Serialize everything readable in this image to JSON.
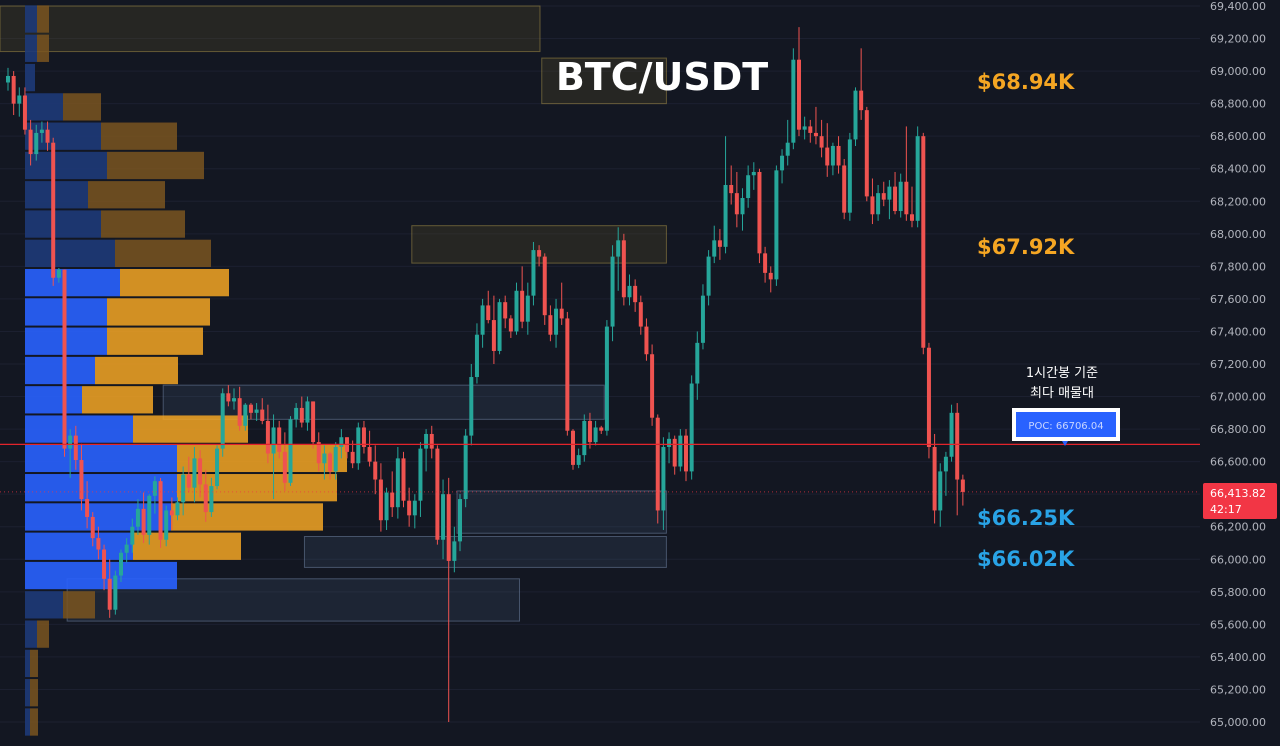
{
  "chart_data": {
    "type": "candlestick",
    "title": "BTC/USDT",
    "ylim": [
      65000,
      69400
    ],
    "yticks": [
      69400,
      69200,
      69000,
      68800,
      68600,
      68400,
      68200,
      68000,
      67800,
      67600,
      67400,
      67200,
      67000,
      66800,
      66600,
      66400,
      66200,
      66000,
      65800,
      65600,
      65400,
      65200,
      65000
    ],
    "ytick_labels": [
      "69,400.00",
      "69,200.00",
      "69,000.00",
      "68,800.00",
      "68,600.00",
      "68,400.00",
      "68,200.00",
      "68,000.00",
      "67,800.00",
      "67,600.00",
      "67,400.00",
      "67,200.00",
      "67,000.00",
      "66,800.00",
      "66,600.00",
      "66,400.00",
      "66,200.00",
      "66,000.00",
      "65,800.00",
      "65,600.00",
      "65,400.00",
      "65,200.00",
      "65,000.00"
    ],
    "grid": true,
    "current_price": {
      "value": 66413.82,
      "label": "66,413.82",
      "countdown": "42:17",
      "color": "#f23645"
    },
    "poc": {
      "value": 66706.04,
      "label": "POC: 66706.04",
      "note_line1": "1시간봉 기준",
      "note_line2": "최다 매물대"
    },
    "level_labels": [
      {
        "text": "$68.94K",
        "price": 68940,
        "color": "#f5a623"
      },
      {
        "text": "$67.92K",
        "price": 67920,
        "color": "#f5a623"
      },
      {
        "text": "$66.25K",
        "price": 66250,
        "color": "#29a3e6"
      },
      {
        "text": "$66.02K",
        "price": 66020,
        "color": "#29a3e6"
      }
    ],
    "zones": [
      {
        "from_candle": 0,
        "to_candle": 999,
        "price_top": 69400,
        "price_bottom": 69120,
        "kind": "supply"
      },
      {
        "from_candle": 95,
        "to_candle": 116,
        "price_top": 69080,
        "price_bottom": 68800,
        "kind": "supply"
      },
      {
        "from_candle": 72,
        "to_candle": 116,
        "price_top": 68050,
        "price_bottom": 67820,
        "kind": "supply"
      },
      {
        "from_candle": 28,
        "to_candle": 105,
        "price_top": 67070,
        "price_bottom": 66860,
        "kind": "demand"
      },
      {
        "from_candle": 80,
        "to_candle": 116,
        "price_top": 66420,
        "price_bottom": 66160,
        "kind": "demand"
      },
      {
        "from_candle": 53,
        "to_candle": 116,
        "price_top": 66140,
        "price_bottom": 65950,
        "kind": "demand"
      },
      {
        "from_candle": 11,
        "to_candle": 90,
        "price_top": 65880,
        "price_bottom": 65620,
        "kind": "demand"
      }
    ],
    "volume_profile": [
      {
        "price": 69320,
        "buy": 12,
        "sell": 12
      },
      {
        "price": 69140,
        "buy": 12,
        "sell": 12
      },
      {
        "price": 68960,
        "buy": 10,
        "sell": 0
      },
      {
        "price": 68780,
        "buy": 38,
        "sell": 38
      },
      {
        "price": 68600,
        "buy": 76,
        "sell": 76
      },
      {
        "price": 68420,
        "buy": 82,
        "sell": 97
      },
      {
        "price": 68240,
        "buy": 63,
        "sell": 77
      },
      {
        "price": 68060,
        "buy": 76,
        "sell": 84
      },
      {
        "price": 67880,
        "buy": 90,
        "sell": 96
      },
      {
        "price": 67700,
        "buy": 95,
        "sell": 109
      },
      {
        "price": 67520,
        "buy": 82,
        "sell": 103
      },
      {
        "price": 67340,
        "buy": 82,
        "sell": 96
      },
      {
        "price": 67160,
        "buy": 70,
        "sell": 83
      },
      {
        "price": 66980,
        "buy": 57,
        "sell": 71
      },
      {
        "price": 66800,
        "buy": 108,
        "sell": 115
      },
      {
        "price": 66620,
        "buy": 152,
        "sell": 170
      },
      {
        "price": 66440,
        "buy": 152,
        "sell": 160
      },
      {
        "price": 66260,
        "buy": 146,
        "sell": 152
      },
      {
        "price": 66080,
        "buy": 108,
        "sell": 108
      },
      {
        "price": 65900,
        "buy": 152,
        "sell": 0
      },
      {
        "price": 65720,
        "buy": 38,
        "sell": 32
      },
      {
        "price": 65540,
        "buy": 12,
        "sell": 12
      },
      {
        "price": 65360,
        "buy": 5,
        "sell": 8
      },
      {
        "price": 65180,
        "buy": 5,
        "sell": 8
      },
      {
        "price": 65000,
        "buy": 5,
        "sell": 8
      }
    ],
    "candles": [
      [
        68930,
        69020,
        68880,
        68970
      ],
      [
        68970,
        69000,
        68730,
        68800
      ],
      [
        68800,
        68900,
        68720,
        68850
      ],
      [
        68850,
        68900,
        68610,
        68640
      ],
      [
        68640,
        68700,
        68420,
        68490
      ],
      [
        68490,
        68670,
        68450,
        68620
      ],
      [
        68620,
        68690,
        68560,
        68640
      ],
      [
        68640,
        68690,
        68510,
        68560
      ],
      [
        68560,
        68590,
        67680,
        67730
      ],
      [
        67730,
        67790,
        67700,
        67780
      ],
      [
        67780,
        67780,
        66630,
        66680
      ],
      [
        66680,
        66800,
        66500,
        66760
      ],
      [
        66760,
        66820,
        66550,
        66610
      ],
      [
        66610,
        66710,
        66300,
        66370
      ],
      [
        66370,
        66480,
        66190,
        66260
      ],
      [
        66260,
        66290,
        66080,
        66130
      ],
      [
        66130,
        66200,
        66000,
        66060
      ],
      [
        66060,
        66090,
        65810,
        65880
      ],
      [
        65880,
        66000,
        65640,
        65690
      ],
      [
        65690,
        65930,
        65660,
        65900
      ],
      [
        65900,
        66060,
        65860,
        66040
      ],
      [
        66040,
        66130,
        65980,
        66090
      ],
      [
        66090,
        66250,
        66040,
        66200
      ],
      [
        66200,
        66370,
        66150,
        66310
      ],
      [
        66310,
        66410,
        66100,
        66150
      ],
      [
        66150,
        66400,
        66090,
        66390
      ],
      [
        66390,
        66510,
        66280,
        66480
      ],
      [
        66480,
        66500,
        66070,
        66120
      ],
      [
        66120,
        66330,
        66080,
        66300
      ],
      [
        66300,
        66380,
        66180,
        66270
      ],
      [
        66270,
        66380,
        66240,
        66350
      ],
      [
        66350,
        66570,
        66270,
        66520
      ],
      [
        66520,
        66630,
        66410,
        66440
      ],
      [
        66440,
        66690,
        66350,
        66620
      ],
      [
        66620,
        66670,
        66380,
        66460
      ],
      [
        66460,
        66550,
        66230,
        66290
      ],
      [
        66290,
        66500,
        66260,
        66450
      ],
      [
        66450,
        66700,
        66430,
        66680
      ],
      [
        66680,
        67050,
        66630,
        67020
      ],
      [
        67020,
        67070,
        66940,
        66970
      ],
      [
        66970,
        67050,
        66920,
        66990
      ],
      [
        66990,
        67060,
        66790,
        66820
      ],
      [
        66820,
        66960,
        66790,
        66950
      ],
      [
        66950,
        66960,
        66860,
        66900
      ],
      [
        66900,
        66960,
        66850,
        66920
      ],
      [
        66920,
        66990,
        66830,
        66850
      ],
      [
        66850,
        66950,
        66590,
        66650
      ],
      [
        66650,
        66890,
        66370,
        66810
      ],
      [
        66810,
        66850,
        66620,
        66660
      ],
      [
        66660,
        66780,
        66420,
        66470
      ],
      [
        66470,
        66880,
        66450,
        66860
      ],
      [
        66860,
        66960,
        66810,
        66930
      ],
      [
        66930,
        67000,
        66810,
        66840
      ],
      [
        66840,
        67000,
        66790,
        66970
      ],
      [
        66970,
        66970,
        66680,
        66720
      ],
      [
        66720,
        66780,
        66540,
        66590
      ],
      [
        66590,
        66700,
        66490,
        66650
      ],
      [
        66650,
        66660,
        66490,
        66540
      ],
      [
        66540,
        66720,
        66490,
        66690
      ],
      [
        66690,
        66800,
        66620,
        66750
      ],
      [
        66750,
        66750,
        66620,
        66660
      ],
      [
        66660,
        66730,
        66560,
        66590
      ],
      [
        66590,
        66840,
        66550,
        66810
      ],
      [
        66810,
        66850,
        66650,
        66690
      ],
      [
        66690,
        66790,
        66570,
        66600
      ],
      [
        66600,
        66700,
        66400,
        66490
      ],
      [
        66490,
        66590,
        66170,
        66240
      ],
      [
        66240,
        66440,
        66180,
        66410
      ],
      [
        66410,
        66540,
        66260,
        66320
      ],
      [
        66320,
        66690,
        66250,
        66620
      ],
      [
        66620,
        66660,
        66320,
        66360
      ],
      [
        66360,
        66440,
        66200,
        66270
      ],
      [
        66270,
        66400,
        66190,
        66360
      ],
      [
        66360,
        66720,
        66260,
        66680
      ],
      [
        66680,
        66800,
        66540,
        66770
      ],
      [
        66770,
        66820,
        66620,
        66680
      ],
      [
        66680,
        66700,
        66090,
        66120
      ],
      [
        66120,
        66490,
        66000,
        66400
      ],
      [
        66400,
        66500,
        65000,
        65990
      ],
      [
        65990,
        66200,
        65920,
        66110
      ],
      [
        66110,
        66400,
        66050,
        66370
      ],
      [
        66370,
        66800,
        66320,
        66760
      ],
      [
        66760,
        67200,
        66700,
        67120
      ],
      [
        67120,
        67450,
        67080,
        67380
      ],
      [
        67380,
        67600,
        67300,
        67560
      ],
      [
        67560,
        67650,
        67450,
        67470
      ],
      [
        67470,
        67620,
        67200,
        67280
      ],
      [
        67280,
        67600,
        67260,
        67580
      ],
      [
        67580,
        67620,
        67420,
        67480
      ],
      [
        67480,
        67500,
        67360,
        67400
      ],
      [
        67400,
        67700,
        67380,
        67650
      ],
      [
        67650,
        67800,
        67420,
        67460
      ],
      [
        67460,
        67700,
        67380,
        67620
      ],
      [
        67620,
        67950,
        67560,
        67900
      ],
      [
        67900,
        67930,
        67800,
        67860
      ],
      [
        67860,
        67880,
        67440,
        67500
      ],
      [
        67500,
        67560,
        67340,
        67380
      ],
      [
        67380,
        67600,
        67300,
        67540
      ],
      [
        67540,
        67700,
        67440,
        67480
      ],
      [
        67480,
        67520,
        66760,
        66790
      ],
      [
        66790,
        66800,
        66550,
        66580
      ],
      [
        66580,
        66680,
        66560,
        66640
      ],
      [
        66640,
        66890,
        66600,
        66850
      ],
      [
        66850,
        66900,
        66680,
        66720
      ],
      [
        66720,
        66850,
        66700,
        66810
      ],
      [
        66810,
        66820,
        66770,
        66790
      ],
      [
        66790,
        67470,
        66760,
        67430
      ],
      [
        67430,
        67930,
        67340,
        67860
      ],
      [
        67860,
        68040,
        67650,
        67960
      ],
      [
        67960,
        68000,
        67560,
        67610
      ],
      [
        67610,
        67750,
        67560,
        67680
      ],
      [
        67680,
        67720,
        67520,
        67580
      ],
      [
        67580,
        67620,
        67380,
        67430
      ],
      [
        67430,
        67480,
        67220,
        67260
      ],
      [
        67260,
        67320,
        66820,
        66870
      ],
      [
        66870,
        66890,
        66220,
        66300
      ],
      [
        66300,
        66750,
        66180,
        66690
      ],
      [
        66690,
        66780,
        66590,
        66740
      ],
      [
        66740,
        66760,
        66520,
        66570
      ],
      [
        66570,
        66800,
        66540,
        66760
      ],
      [
        66760,
        66800,
        66480,
        66540
      ],
      [
        66540,
        67130,
        66490,
        67080
      ],
      [
        67080,
        67400,
        66980,
        67330
      ],
      [
        67330,
        67690,
        67290,
        67620
      ],
      [
        67620,
        67900,
        67560,
        67860
      ],
      [
        67860,
        68050,
        67820,
        67960
      ],
      [
        67960,
        68030,
        67840,
        67920
      ],
      [
        67920,
        68600,
        67880,
        68300
      ],
      [
        68300,
        68420,
        68180,
        68250
      ],
      [
        68250,
        68380,
        68040,
        68120
      ],
      [
        68120,
        68280,
        68020,
        68220
      ],
      [
        68220,
        68420,
        68160,
        68360
      ],
      [
        68360,
        68440,
        68270,
        68380
      ],
      [
        68380,
        68400,
        67820,
        67880
      ],
      [
        67880,
        67920,
        67700,
        67760
      ],
      [
        67760,
        67800,
        67640,
        67720
      ],
      [
        67720,
        68420,
        67680,
        68390
      ],
      [
        68390,
        68520,
        68310,
        68480
      ],
      [
        68480,
        68700,
        68420,
        68560
      ],
      [
        68560,
        69140,
        68520,
        69070
      ],
      [
        69070,
        69270,
        68600,
        68640
      ],
      [
        68640,
        68720,
        68580,
        68660
      ],
      [
        68660,
        68700,
        68560,
        68620
      ],
      [
        68620,
        68780,
        68550,
        68600
      ],
      [
        68600,
        68700,
        68470,
        68530
      ],
      [
        68530,
        68680,
        68350,
        68420
      ],
      [
        68420,
        68560,
        68360,
        68540
      ],
      [
        68540,
        68600,
        68370,
        68420
      ],
      [
        68420,
        68460,
        68090,
        68130
      ],
      [
        68130,
        68620,
        68080,
        68580
      ],
      [
        68580,
        68900,
        68540,
        68880
      ],
      [
        68880,
        69140,
        68700,
        68760
      ],
      [
        68760,
        68780,
        68200,
        68230
      ],
      [
        68230,
        68340,
        68060,
        68120
      ],
      [
        68120,
        68300,
        68080,
        68250
      ],
      [
        68250,
        68320,
        68170,
        68210
      ],
      [
        68210,
        68330,
        68090,
        68290
      ],
      [
        68290,
        68380,
        68120,
        68140
      ],
      [
        68140,
        68370,
        68100,
        68320
      ],
      [
        68320,
        68660,
        68080,
        68120
      ],
      [
        68120,
        68290,
        68040,
        68080
      ],
      [
        68080,
        68660,
        68040,
        68600
      ],
      [
        68600,
        68620,
        67260,
        67300
      ],
      [
        67300,
        67330,
        66620,
        66690
      ],
      [
        66690,
        66770,
        66220,
        66300
      ],
      [
        66300,
        66590,
        66200,
        66540
      ],
      [
        66540,
        66660,
        66390,
        66630
      ],
      [
        66630,
        66950,
        66600,
        66900
      ],
      [
        66900,
        66960,
        66270,
        66490
      ],
      [
        66490,
        66520,
        66330,
        66414
      ]
    ]
  }
}
